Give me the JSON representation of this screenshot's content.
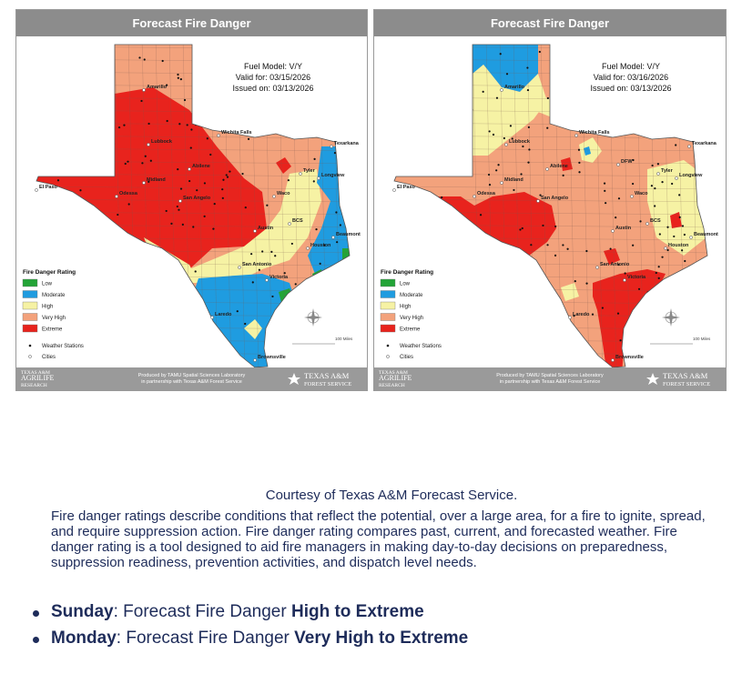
{
  "maps": [
    {
      "title": "Forecast Fire Danger",
      "fuel_model": "Fuel Model: V/Y",
      "valid_for": "Valid for: 03/15/2026",
      "issued_on": "Issued on: 03/13/2026",
      "legend_title": "Fire Danger Rating",
      "legend": [
        {
          "label": "Low",
          "color": "#23a437"
        },
        {
          "label": "Moderate",
          "color": "#1f9ce0"
        },
        {
          "label": "High",
          "color": "#f6f2a4"
        },
        {
          "label": "Very High",
          "color": "#f3a27c"
        },
        {
          "label": "Extreme",
          "color": "#e8231d"
        }
      ],
      "stations_label": "Weather Stations",
      "cities_label": "Cities",
      "scale_label": "100 Miles",
      "cities": [
        "Amarillo",
        "Lubbock",
        "Wichita Falls",
        "Abilene",
        "Midland",
        "Odessa",
        "El Paso",
        "San Angelo",
        "Austin",
        "Waco",
        "Tyler",
        "Longview",
        "Texarkana",
        "BCS",
        "Houston",
        "Beaumont",
        "San Antonio",
        "Victoria",
        "Laredo",
        "Brownsville"
      ],
      "logo_left": [
        "TEXAS A&M",
        "AGRILIFE",
        "RESEARCH"
      ],
      "credit": [
        "Produced by TAMU Spatial Sciences Laboratory",
        "in partnership with Texas A&M Forest Service"
      ],
      "logo_right": [
        "TEXAS A&M",
        "FOREST SERVICE"
      ]
    },
    {
      "title": "Forecast Fire Danger",
      "fuel_model": "Fuel Model: V/Y",
      "valid_for": "Valid for: 03/16/2026",
      "issued_on": "Issued on: 03/13/2026",
      "legend_title": "Fire Danger Rating",
      "legend": [
        {
          "label": "Low",
          "color": "#23a437"
        },
        {
          "label": "Moderate",
          "color": "#1f9ce0"
        },
        {
          "label": "High",
          "color": "#f6f2a4"
        },
        {
          "label": "Very High",
          "color": "#f3a27c"
        },
        {
          "label": "Extreme",
          "color": "#e8231d"
        }
      ],
      "stations_label": "Weather Stations",
      "cities_label": "Cities",
      "scale_label": "100 Miles",
      "cities": [
        "Amarillo",
        "Lubbock",
        "Wichita Falls",
        "Abilene",
        "Midland",
        "Odessa",
        "El Paso",
        "San Angelo",
        "Austin",
        "Waco",
        "Tyler",
        "Longview",
        "Texarkana",
        "BCS",
        "Houston",
        "Beaumont",
        "San Antonio",
        "Victoria",
        "Laredo",
        "Brownsville",
        "DFW"
      ],
      "logo_left": [
        "TEXAS A&M",
        "AGRILIFE",
        "RESEARCH"
      ],
      "credit": [
        "Produced by TAMU Spatial Sciences Laboratory",
        "in partnership with Texas A&M Forest Service"
      ],
      "logo_right": [
        "TEXAS A&M",
        "FOREST SERVICE"
      ]
    }
  ],
  "caption": "Courtesy of Texas A&M Forecast Service.",
  "paragraph": "Fire danger ratings describe conditions that reflect the potential, over a large area, for a fire to ignite, spread, and require suppression action. Fire danger rating compares past, current, and forecasted weather. Fire danger rating is a tool designed to aid fire managers in making day-to-day decisions on preparedness, suppression readiness, prevention activities, and dispatch level needs.",
  "bullets": [
    {
      "day": "Sunday",
      "text": ": Forecast Fire Danger ",
      "level": "High to Extreme"
    },
    {
      "day": "Monday",
      "text": ": Forecast Fire Danger ",
      "level": "Very High to Extreme"
    }
  ]
}
